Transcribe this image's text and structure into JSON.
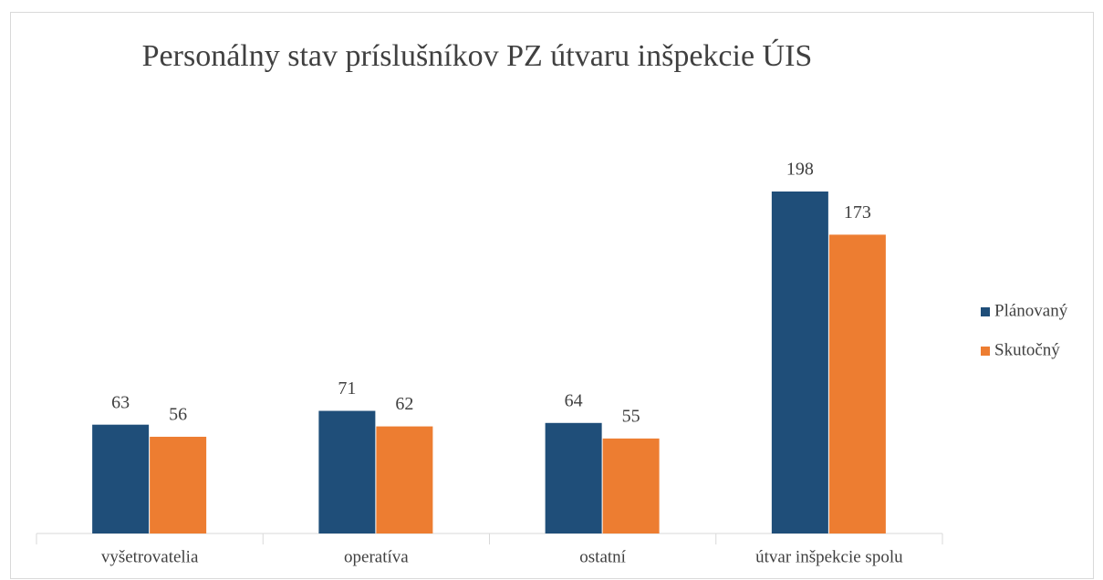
{
  "chart_data": {
    "type": "bar",
    "title": "Personálny stav príslušníkov PZ útvaru inšpekcie ÚIS",
    "categories": [
      "vyšetrovatelia",
      "operatíva",
      "ostatní",
      "útvar inšpekcie spolu"
    ],
    "series": [
      {
        "name": "Plánovaný",
        "color": "#1f4e79",
        "values": [
          63,
          71,
          64,
          198
        ]
      },
      {
        "name": "Skutočný",
        "color": "#ed7d31",
        "values": [
          56,
          62,
          55,
          173
        ]
      }
    ],
    "legend": "right"
  }
}
